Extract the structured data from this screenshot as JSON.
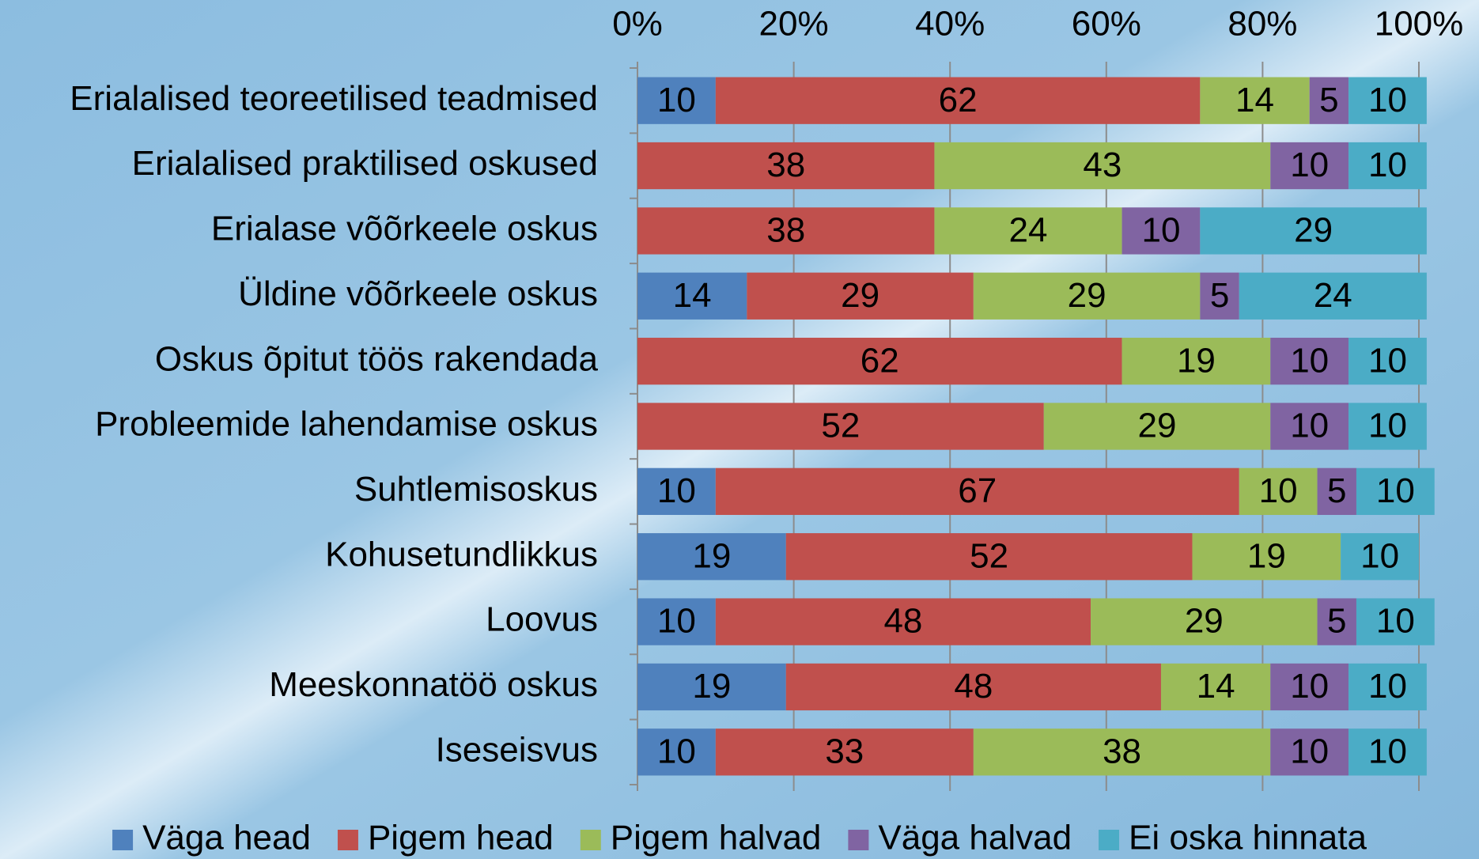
{
  "chart_data": {
    "type": "bar",
    "orientation": "horizontal",
    "stacked": true,
    "categories": [
      "Erialalised teoreetilised teadmised",
      "Erialalised praktilised oskused",
      "Erialase võõrkeele oskus",
      "Üldine võõrkeele oskus",
      "Oskus õpitut töös rakendada",
      "Probleemide lahendamise oskus",
      "Suhtlemisoskus",
      "Kohusetundlikkus",
      "Loovus",
      "Meeskonnatöö oskus",
      "Iseseisvus"
    ],
    "series": [
      {
        "name": "Väga head",
        "color": "#4f81bd",
        "values": [
          10,
          null,
          null,
          14,
          null,
          null,
          10,
          19,
          10,
          19,
          10
        ]
      },
      {
        "name": "Pigem head",
        "color": "#c0504d",
        "values": [
          62,
          38,
          38,
          29,
          62,
          52,
          67,
          52,
          48,
          48,
          33
        ]
      },
      {
        "name": "Pigem halvad",
        "color": "#9bbb59",
        "values": [
          14,
          43,
          24,
          29,
          19,
          29,
          10,
          19,
          29,
          14,
          38
        ]
      },
      {
        "name": "Väga halvad",
        "color": "#8064a2",
        "values": [
          5,
          10,
          10,
          5,
          10,
          10,
          5,
          null,
          5,
          10,
          10
        ]
      },
      {
        "name": "Ei oska hinnata",
        "color": "#4bacc6",
        "values": [
          10,
          10,
          29,
          24,
          10,
          10,
          10,
          10,
          10,
          10,
          10
        ]
      }
    ],
    "xlim": [
      0,
      100
    ],
    "xticks": [
      {
        "value": 0,
        "label": "0%"
      },
      {
        "value": 20,
        "label": "20%"
      },
      {
        "value": 40,
        "label": "40%"
      },
      {
        "value": 60,
        "label": "60%"
      },
      {
        "value": 80,
        "label": "80%"
      },
      {
        "value": 100,
        "label": "100%"
      }
    ],
    "grid": true,
    "legend": "bottom",
    "axis_position": "top"
  }
}
